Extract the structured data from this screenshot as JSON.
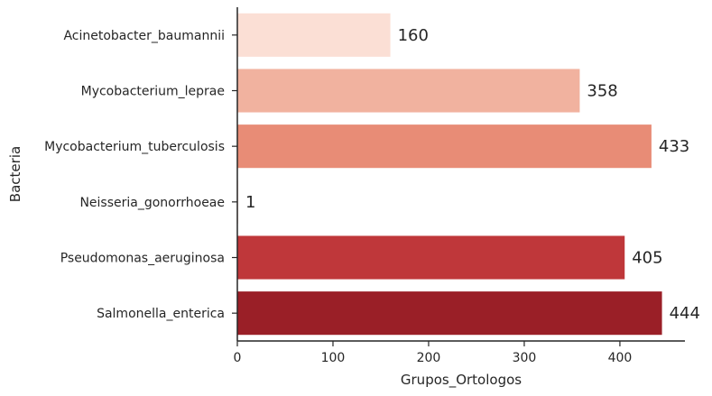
{
  "chart_data": {
    "type": "bar",
    "orientation": "horizontal",
    "categories": [
      "Acinetobacter_baumannii",
      "Mycobacterium_leprae",
      "Mycobacterium_tuberculosis",
      "Neisseria_gonorrhoeae",
      "Pseudomonas_aeruginosa",
      "Salmonella_enterica"
    ],
    "values": [
      160,
      358,
      433,
      1,
      405,
      444
    ],
    "colors": [
      "#fbdfd5",
      "#f1b29f",
      "#e88c76",
      "#fbdfd5",
      "#bf373a",
      "#9a1f27"
    ],
    "xlabel": "Grupos_Ortologos",
    "ylabel": "Bacteria",
    "xlim": [
      0,
      468
    ],
    "xticks": [
      0,
      100,
      200,
      300,
      400
    ],
    "grid": false,
    "data_labels": true
  }
}
